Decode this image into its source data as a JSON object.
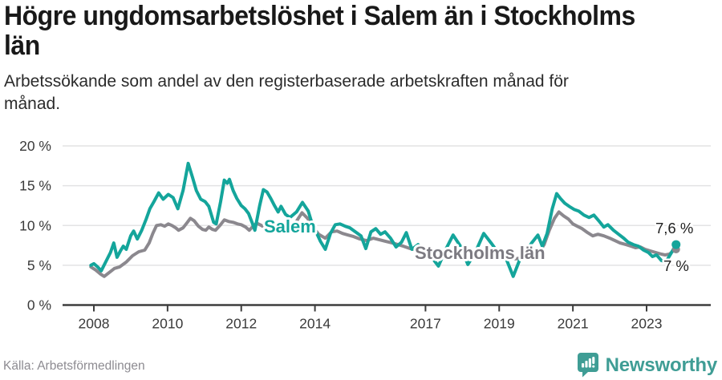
{
  "header": {
    "title_lines": [
      "Högre ungdomsarbetslöshet i Salem än i Stockholms",
      "län"
    ],
    "subtitle_lines": [
      "Arbetssökande som andel av den registerbaserade arbetskraften månad för",
      "månad."
    ]
  },
  "chart_data": {
    "type": "line",
    "title": "Högre ungdomsarbetslöshet i Salem än i Stockholms län",
    "subtitle": "Arbetssökande som andel av den registerbaserade arbetskraften månad för månad.",
    "grid": "horizontal-only",
    "x_axis": {
      "ticks": [
        {
          "year": 2008,
          "label": "2008"
        },
        {
          "year": 2010,
          "label": "2010"
        },
        {
          "year": 2012,
          "label": "2012"
        },
        {
          "year": 2014,
          "label": "2014"
        },
        {
          "year": 2017,
          "label": "2017"
        },
        {
          "year": 2019,
          "label": "2019"
        },
        {
          "year": 2021,
          "label": "2021"
        },
        {
          "year": 2023,
          "label": "2023"
        }
      ]
    },
    "y_axis": {
      "range": [
        0,
        20
      ],
      "ticks": [
        {
          "value": 0,
          "label": "0 %"
        },
        {
          "value": 5,
          "label": "5 %"
        },
        {
          "value": 10,
          "label": "10 %"
        },
        {
          "value": 15,
          "label": "15 %"
        },
        {
          "value": 20,
          "label": "20 %"
        }
      ]
    },
    "series": [
      {
        "name": "Stockholms län",
        "color": "#8b888e",
        "end_label": "7 %",
        "end_value": 7.0,
        "points": [
          [
            2007.92,
            4.8
          ],
          [
            2008.05,
            4.4
          ],
          [
            2008.18,
            3.9
          ],
          [
            2008.28,
            3.6
          ],
          [
            2008.42,
            4.1
          ],
          [
            2008.56,
            4.6
          ],
          [
            2008.7,
            4.8
          ],
          [
            2008.88,
            5.4
          ],
          [
            2009.05,
            6.2
          ],
          [
            2009.22,
            6.7
          ],
          [
            2009.38,
            6.9
          ],
          [
            2009.5,
            7.8
          ],
          [
            2009.6,
            9.0
          ],
          [
            2009.7,
            10.0
          ],
          [
            2009.82,
            10.1
          ],
          [
            2009.92,
            9.9
          ],
          [
            2010.02,
            10.2
          ],
          [
            2010.12,
            10.0
          ],
          [
            2010.22,
            9.7
          ],
          [
            2010.3,
            9.4
          ],
          [
            2010.42,
            9.7
          ],
          [
            2010.52,
            10.3
          ],
          [
            2010.62,
            10.9
          ],
          [
            2010.72,
            10.6
          ],
          [
            2010.84,
            9.9
          ],
          [
            2010.95,
            9.5
          ],
          [
            2011.04,
            9.4
          ],
          [
            2011.12,
            9.8
          ],
          [
            2011.22,
            9.5
          ],
          [
            2011.3,
            9.4
          ],
          [
            2011.42,
            10.0
          ],
          [
            2011.54,
            10.7
          ],
          [
            2011.66,
            10.5
          ],
          [
            2011.78,
            10.4
          ],
          [
            2011.9,
            10.2
          ],
          [
            2012.0,
            10.1
          ],
          [
            2012.12,
            9.8
          ],
          [
            2012.22,
            9.4
          ],
          [
            2012.32,
            9.9
          ],
          [
            2012.42,
            10.3
          ],
          [
            2012.55,
            10.0
          ],
          [
            2012.68,
            9.6
          ],
          [
            2012.82,
            9.4
          ],
          [
            2012.95,
            9.5
          ],
          [
            2013.1,
            9.3
          ],
          [
            2013.25,
            9.1
          ],
          [
            2013.4,
            9.7
          ],
          [
            2013.55,
            10.9
          ],
          [
            2013.65,
            11.6
          ],
          [
            2013.8,
            10.9
          ],
          [
            2013.95,
            9.8
          ],
          [
            2014.1,
            8.9
          ],
          [
            2014.28,
            8.4
          ],
          [
            2014.45,
            9.2
          ],
          [
            2014.6,
            9.3
          ],
          [
            2014.75,
            9.0
          ],
          [
            2014.9,
            8.8
          ],
          [
            2015.05,
            8.6
          ],
          [
            2015.22,
            8.3
          ],
          [
            2015.4,
            8.1
          ],
          [
            2015.58,
            8.4
          ],
          [
            2015.75,
            8.2
          ],
          [
            2015.92,
            8.0
          ],
          [
            2016.1,
            7.8
          ],
          [
            2016.25,
            7.6
          ],
          [
            2016.4,
            7.4
          ],
          [
            2016.58,
            7.1
          ],
          [
            2016.75,
            6.9
          ],
          [
            2016.95,
            6.8
          ],
          [
            2017.15,
            6.6
          ],
          [
            2017.42,
            6.8
          ],
          [
            2017.7,
            6.6
          ],
          [
            2017.95,
            6.4
          ],
          [
            2018.2,
            6.2
          ],
          [
            2018.45,
            6.3
          ],
          [
            2018.7,
            6.4
          ],
          [
            2018.95,
            6.1
          ],
          [
            2019.2,
            5.9
          ],
          [
            2019.45,
            5.8
          ],
          [
            2019.68,
            6.0
          ],
          [
            2019.9,
            6.2
          ],
          [
            2020.08,
            6.6
          ],
          [
            2020.22,
            7.6
          ],
          [
            2020.36,
            9.4
          ],
          [
            2020.5,
            10.9
          ],
          [
            2020.62,
            11.7
          ],
          [
            2020.75,
            11.2
          ],
          [
            2020.88,
            10.8
          ],
          [
            2021.0,
            10.2
          ],
          [
            2021.12,
            9.9
          ],
          [
            2021.25,
            9.6
          ],
          [
            2021.4,
            9.1
          ],
          [
            2021.54,
            8.7
          ],
          [
            2021.68,
            8.9
          ],
          [
            2021.84,
            8.7
          ],
          [
            2022.0,
            8.4
          ],
          [
            2022.14,
            8.1
          ],
          [
            2022.28,
            7.8
          ],
          [
            2022.44,
            7.6
          ],
          [
            2022.58,
            7.4
          ],
          [
            2022.7,
            7.2
          ],
          [
            2022.83,
            7.3
          ],
          [
            2022.96,
            7.0
          ],
          [
            2023.1,
            6.8
          ],
          [
            2023.25,
            6.6
          ],
          [
            2023.4,
            6.4
          ],
          [
            2023.5,
            6.3
          ],
          [
            2023.62,
            6.4
          ],
          [
            2023.72,
            6.8
          ],
          [
            2023.8,
            7.0
          ]
        ]
      },
      {
        "name": "Salem",
        "color": "#14a59b",
        "end_label": "7,6 %",
        "end_value": 7.6,
        "points": [
          [
            2007.92,
            5.0
          ],
          [
            2008.0,
            5.2
          ],
          [
            2008.1,
            4.8
          ],
          [
            2008.2,
            4.3
          ],
          [
            2008.33,
            5.5
          ],
          [
            2008.45,
            6.6
          ],
          [
            2008.54,
            7.8
          ],
          [
            2008.63,
            6.0
          ],
          [
            2008.72,
            6.8
          ],
          [
            2008.8,
            7.4
          ],
          [
            2008.88,
            7.0
          ],
          [
            2009.0,
            8.7
          ],
          [
            2009.08,
            9.3
          ],
          [
            2009.18,
            8.3
          ],
          [
            2009.3,
            9.4
          ],
          [
            2009.42,
            10.8
          ],
          [
            2009.52,
            12.1
          ],
          [
            2009.63,
            13.0
          ],
          [
            2009.76,
            14.1
          ],
          [
            2009.88,
            13.3
          ],
          [
            2010.02,
            13.9
          ],
          [
            2010.15,
            13.5
          ],
          [
            2010.28,
            12.1
          ],
          [
            2010.42,
            14.4
          ],
          [
            2010.56,
            17.8
          ],
          [
            2010.68,
            16.0
          ],
          [
            2010.78,
            14.4
          ],
          [
            2010.9,
            13.3
          ],
          [
            2011.02,
            13.0
          ],
          [
            2011.12,
            12.4
          ],
          [
            2011.25,
            10.4
          ],
          [
            2011.32,
            10.2
          ],
          [
            2011.44,
            13.0
          ],
          [
            2011.54,
            15.7
          ],
          [
            2011.62,
            15.3
          ],
          [
            2011.68,
            15.8
          ],
          [
            2011.78,
            14.4
          ],
          [
            2011.88,
            13.4
          ],
          [
            2012.0,
            12.5
          ],
          [
            2012.1,
            12.1
          ],
          [
            2012.2,
            11.5
          ],
          [
            2012.3,
            10.3
          ],
          [
            2012.37,
            9.4
          ],
          [
            2012.5,
            12.5
          ],
          [
            2012.6,
            14.5
          ],
          [
            2012.7,
            14.2
          ],
          [
            2012.8,
            13.4
          ],
          [
            2012.9,
            12.5
          ],
          [
            2013.0,
            11.7
          ],
          [
            2013.08,
            12.4
          ],
          [
            2013.2,
            11.4
          ],
          [
            2013.32,
            11.0
          ],
          [
            2013.5,
            11.7
          ],
          [
            2013.66,
            12.9
          ],
          [
            2013.82,
            11.8
          ],
          [
            2013.95,
            9.8
          ],
          [
            2014.05,
            9.0
          ],
          [
            2014.15,
            8.0
          ],
          [
            2014.28,
            7.0
          ],
          [
            2014.42,
            9.0
          ],
          [
            2014.55,
            10.1
          ],
          [
            2014.68,
            10.2
          ],
          [
            2014.82,
            9.9
          ],
          [
            2014.95,
            9.7
          ],
          [
            2015.1,
            9.2
          ],
          [
            2015.25,
            8.7
          ],
          [
            2015.38,
            7.1
          ],
          [
            2015.52,
            9.2
          ],
          [
            2015.65,
            9.6
          ],
          [
            2015.78,
            8.9
          ],
          [
            2015.9,
            9.2
          ],
          [
            2016.05,
            8.4
          ],
          [
            2016.2,
            7.3
          ],
          [
            2016.35,
            7.9
          ],
          [
            2016.48,
            9.1
          ],
          [
            2016.63,
            7.0
          ],
          [
            2016.8,
            7.6
          ],
          [
            2017.0,
            6.8
          ],
          [
            2017.2,
            5.8
          ],
          [
            2017.35,
            4.9
          ],
          [
            2017.55,
            7.0
          ],
          [
            2017.75,
            8.8
          ],
          [
            2017.95,
            7.4
          ],
          [
            2018.15,
            5.1
          ],
          [
            2018.35,
            6.6
          ],
          [
            2018.58,
            9.0
          ],
          [
            2018.78,
            7.8
          ],
          [
            2019.0,
            6.4
          ],
          [
            2019.2,
            5.7
          ],
          [
            2019.38,
            3.6
          ],
          [
            2019.55,
            5.6
          ],
          [
            2019.7,
            6.6
          ],
          [
            2019.88,
            7.8
          ],
          [
            2020.05,
            8.8
          ],
          [
            2020.17,
            7.4
          ],
          [
            2020.3,
            9.0
          ],
          [
            2020.44,
            12.1
          ],
          [
            2020.56,
            14.0
          ],
          [
            2020.66,
            13.4
          ],
          [
            2020.78,
            12.8
          ],
          [
            2020.9,
            12.4
          ],
          [
            2021.04,
            12.0
          ],
          [
            2021.16,
            11.8
          ],
          [
            2021.3,
            11.3
          ],
          [
            2021.44,
            11.0
          ],
          [
            2021.57,
            11.3
          ],
          [
            2021.7,
            10.6
          ],
          [
            2021.84,
            9.8
          ],
          [
            2021.95,
            10.1
          ],
          [
            2022.1,
            9.4
          ],
          [
            2022.24,
            8.9
          ],
          [
            2022.38,
            8.4
          ],
          [
            2022.5,
            7.9
          ],
          [
            2022.64,
            7.6
          ],
          [
            2022.78,
            7.4
          ],
          [
            2022.92,
            6.9
          ],
          [
            2023.05,
            6.6
          ],
          [
            2023.16,
            6.1
          ],
          [
            2023.27,
            6.3
          ],
          [
            2023.4,
            5.6
          ],
          [
            2023.52,
            5.4
          ],
          [
            2023.65,
            6.4
          ],
          [
            2023.8,
            7.6
          ]
        ]
      }
    ],
    "legend_position": "inline-labels",
    "colors": {
      "grid": "#e3e3e4",
      "axis": "#3d3d3d",
      "tick_label": "#3a3a3a",
      "end_label_text": "#1f1f1f"
    }
  },
  "footer": {
    "source": "Källa: Arbetsförmedlingen",
    "brand": "Newsworthy",
    "brand_color": "#3f9d95"
  }
}
